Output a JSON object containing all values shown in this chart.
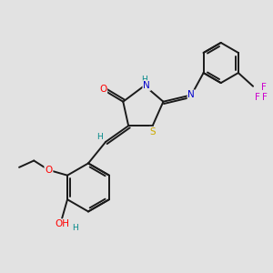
{
  "bg_color": "#e2e2e2",
  "bond_color": "#1a1a1a",
  "bw": 1.4,
  "atom_colors": {
    "O": "#ff0000",
    "N": "#0000cc",
    "S": "#ccaa00",
    "F": "#cc00cc",
    "H": "#008888",
    "C": "#1a1a1a"
  },
  "fs": 7.5
}
